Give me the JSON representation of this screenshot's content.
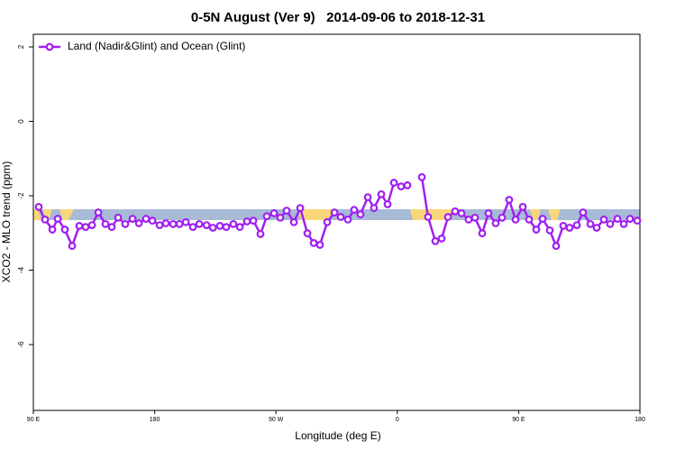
{
  "chart_data": {
    "type": "line",
    "title": "0-5N August (Ver 9)   2014-09-06 to 2018-12-31",
    "x_label": "Longitude (deg E)",
    "y_label": "XCO2 - MLO trend (ppm)",
    "legend": "topleft",
    "grid": false,
    "xlim": [
      90,
      540
    ],
    "xticks": [
      {
        "value": 90,
        "label": "90 E"
      },
      180,
      {
        "value": 270,
        "label": "90 W"
      },
      {
        "value": 360,
        "label": "0"
      },
      {
        "value": 450,
        "label": "90 E"
      },
      {
        "value": 540,
        "label": "180"
      }
    ],
    "ylim": [
      -7.77,
      2.34
    ],
    "yticks": [
      -6,
      -4,
      -2,
      0,
      2
    ],
    "x": [
      94,
      98.7,
      104.1,
      108.1,
      113.4,
      118.8,
      124.1,
      128.8,
      133.5,
      138.2,
      143.5,
      148.2,
      152.9,
      158.2,
      163.6,
      168.3,
      173.6,
      178.3,
      183.7,
      188.3,
      193.7,
      198.4,
      203.1,
      208.4,
      213.1,
      218.5,
      223.2,
      228.4,
      233.1,
      238.4,
      243.2,
      248.5,
      253.2,
      258.5,
      263.2,
      268.6,
      273.2,
      277.9,
      283.3,
      288,
      293.3,
      298,
      302.6,
      308,
      313.4,
      318,
      323.3,
      328,
      332.7,
      338.1,
      342.7,
      348.1,
      352.8,
      357.5,
      362.8,
      367.5,
      372.8,
      378.2,
      382.8,
      388.2,
      392.9,
      397.6,
      402.9,
      407.6,
      412.9,
      417.6,
      423,
      427.6,
      433,
      437.7,
      443,
      447.7,
      453.1,
      457.7,
      463.1,
      467.8,
      473.1,
      477.8,
      483.1,
      487.8,
      493.2,
      497.8,
      503.2,
      507.9,
      513.2,
      517.9,
      523.3,
      528,
      532.6,
      538
    ],
    "series": [
      {
        "name": "Land (Nadir&Glint) and Ocean (Glint)",
        "color": "#a020f0",
        "values": [
          -2.3,
          -2.64,
          -2.91,
          -2.62,
          -2.91,
          -3.35,
          -2.81,
          -2.84,
          -2.79,
          -2.45,
          -2.76,
          -2.84,
          -2.59,
          -2.76,
          -2.62,
          -2.74,
          -2.62,
          -2.67,
          -2.79,
          -2.74,
          -2.76,
          -2.76,
          -2.71,
          -2.84,
          -2.76,
          -2.79,
          -2.86,
          -2.81,
          -2.84,
          -2.76,
          -2.84,
          -2.69,
          -2.67,
          -3.03,
          -2.55,
          -2.47,
          -2.59,
          -2.4,
          -2.71,
          -2.33,
          -3.01,
          -3.27,
          -3.32,
          -2.71,
          -2.45,
          -2.57,
          -2.64,
          -2.38,
          -2.5,
          -2.04,
          -2.33,
          -1.96,
          -2.23,
          -1.65,
          -1.75,
          -1.72,
          null,
          -1.5,
          -2.57,
          -3.22,
          -3.15,
          -2.57,
          -2.42,
          -2.47,
          -2.64,
          -2.59,
          -3.01,
          -2.47,
          -2.74,
          -2.59,
          -2.11,
          -2.64,
          -2.3,
          -2.64,
          -2.91,
          -2.62,
          -2.93,
          -3.35,
          -2.81,
          -2.86,
          -2.79,
          -2.45,
          -2.76,
          -2.86,
          -2.64,
          -2.76,
          -2.62,
          -2.76,
          -2.62,
          -2.67
        ]
      }
    ]
  }
}
